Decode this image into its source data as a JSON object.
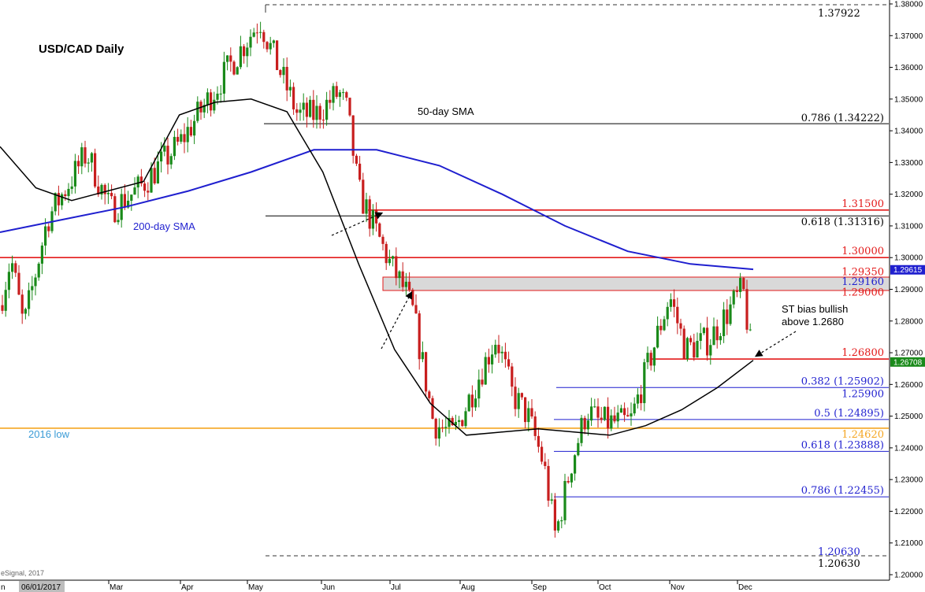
{
  "chart_data": {
    "type": "candlestick",
    "title": "USD/CAD Daily",
    "source": "eSignal, 2017",
    "start_date": "06/01/2017",
    "months": [
      "Mar",
      "Apr",
      "May",
      "Jun",
      "Jul",
      "Aug",
      "Sep",
      "Oct",
      "Nov",
      "Dec"
    ],
    "ylim": [
      1.2,
      1.38
    ],
    "y_ticks": [
      "1.38000",
      "1.37000",
      "1.36000",
      "1.35000",
      "1.34000",
      "1.33000",
      "1.32000",
      "1.31000",
      "1.30000",
      "1.29000",
      "1.28000",
      "1.27000",
      "1.26000",
      "1.25000",
      "1.24000",
      "1.23000",
      "1.22000",
      "1.21000",
      "1.20000"
    ],
    "price_tags": [
      {
        "label": "1.29615",
        "value": 1.29615,
        "color": "#1f1fcf"
      },
      {
        "label": "1.26708",
        "value": 1.26708,
        "color": "#1a8a1a"
      }
    ],
    "annotations": {
      "sma50": "50-day SMA",
      "sma200": "200-day SMA",
      "bias_line1": "ST bias bullish",
      "bias_line2": "above 1.2680",
      "low2016": "2016 low",
      "high_label": "1.37922",
      "low_label_a": "1.20630",
      "low_label_b": "1.20630"
    },
    "levels": [
      {
        "label": "0.786 (1.34222)",
        "value": 1.34222,
        "color": "#000000"
      },
      {
        "label": "1.31500",
        "value": 1.315,
        "color": "#e31a1a"
      },
      {
        "label": "0.618 (1.31316)",
        "value": 1.31316,
        "color": "#000000"
      },
      {
        "label": "1.30000",
        "value": 1.3,
        "color": "#e31a1a"
      },
      {
        "label": "1.29350",
        "value": 1.2935,
        "color": "#e31a1a"
      },
      {
        "label": "1.29160",
        "value": 1.2916,
        "color": "#1f1fcf"
      },
      {
        "label": "1.29000",
        "value": 1.29,
        "color": "#e31a1a"
      },
      {
        "label": "1.26800",
        "value": 1.268,
        "color": "#e31a1a"
      },
      {
        "label": "0.382 (1.25902)",
        "value": 1.25902,
        "color": "#1f1fcf"
      },
      {
        "label": "1.25900",
        "value": 1.259,
        "color": "#1f1fcf"
      },
      {
        "label": "0.5 (1.24895)",
        "value": 1.24895,
        "color": "#1f1fcf"
      },
      {
        "label": "1.24620",
        "value": 1.2462,
        "color": "#f5a623"
      },
      {
        "label": "0.618 (1.23888)",
        "value": 1.23888,
        "color": "#1f1fcf"
      },
      {
        "label": "0.786 (1.22455)",
        "value": 1.22455,
        "color": "#1f1fcf"
      }
    ],
    "close_path": [
      1.285,
      1.3,
      1.278,
      1.312,
      1.333,
      1.315,
      1.3215,
      1.336,
      1.375,
      1.365,
      1.345,
      1.345,
      1.352,
      1.346,
      1.321,
      1.298,
      1.289,
      1.282,
      1.248,
      1.244,
      1.275,
      1.257,
      1.25,
      1.235,
      1.212,
      1.235,
      1.252,
      1.248,
      1.248,
      1.268,
      1.288,
      1.271,
      1.274,
      1.29,
      1.267
    ],
    "sma50": [
      1.335,
      1.322,
      1.318,
      1.321,
      1.324,
      1.345,
      1.349,
      1.35,
      1.346,
      1.327,
      1.298,
      1.271,
      1.254,
      1.244,
      1.245,
      1.246,
      1.245,
      1.244,
      1.247,
      1.252,
      1.259,
      1.2676
    ],
    "sma200": [
      1.308,
      1.312,
      1.316,
      1.321,
      1.327,
      1.334,
      1.334,
      1.329,
      1.32,
      1.31,
      1.302,
      1.298,
      1.2963
    ],
    "colors": {
      "up": "#1a8a1a",
      "down": "#c81e1e",
      "sma50": "#000000",
      "sma200": "#1f1fcf"
    }
  }
}
